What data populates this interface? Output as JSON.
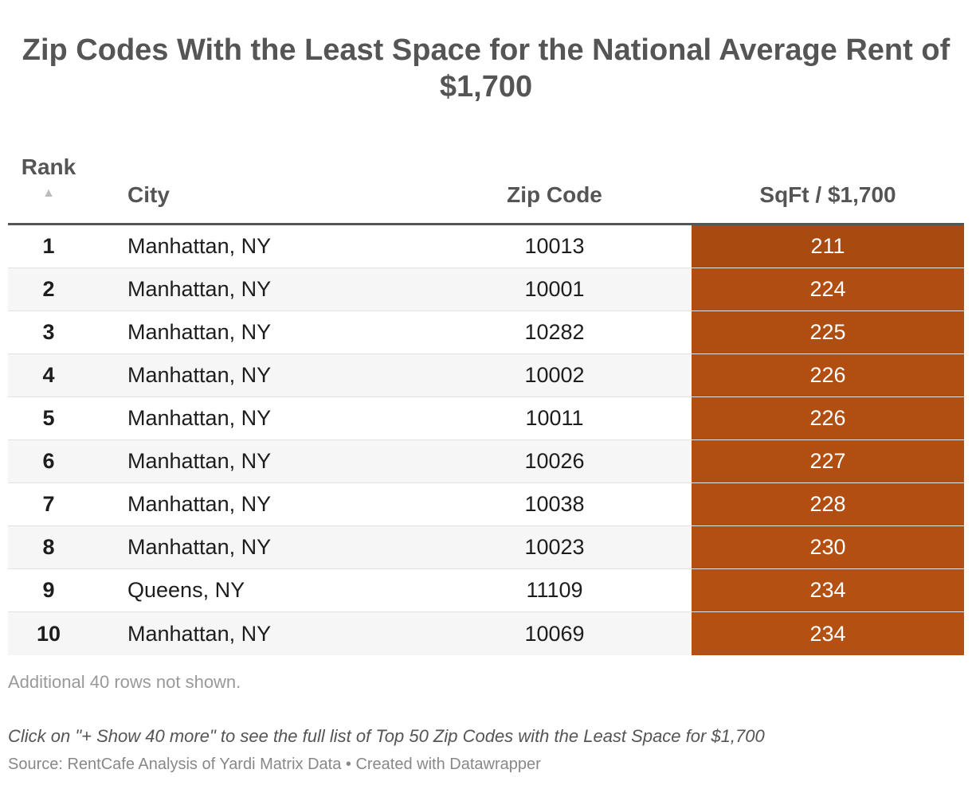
{
  "title": "Zip Codes With the Least Space for the National Average Rent of $1,700",
  "table": {
    "headers": {
      "rank": "Rank",
      "rank_sort_icon": "sort-ascending-icon",
      "rank_sort_glyph": "▲",
      "city": "City",
      "zip": "Zip Code",
      "sqft": "SqFt / $1,700"
    },
    "heat_colors": {
      "min": "#a94a10",
      "max": "#b55013"
    }
  },
  "chart_data": {
    "type": "table",
    "title": "Zip Codes With the Least Space for the National Average Rent of $1,700",
    "columns": [
      "Rank",
      "City",
      "Zip Code",
      "SqFt / $1,700"
    ],
    "rows": [
      {
        "rank": "1",
        "city": "Manhattan, NY",
        "zip": "10013",
        "sqft": 211
      },
      {
        "rank": "2",
        "city": "Manhattan, NY",
        "zip": "10001",
        "sqft": 224
      },
      {
        "rank": "3",
        "city": "Manhattan, NY",
        "zip": "10282",
        "sqft": 225
      },
      {
        "rank": "4",
        "city": "Manhattan, NY",
        "zip": "10002",
        "sqft": 226
      },
      {
        "rank": "5",
        "city": "Manhattan, NY",
        "zip": "10011",
        "sqft": 226
      },
      {
        "rank": "6",
        "city": "Manhattan, NY",
        "zip": "10026",
        "sqft": 227
      },
      {
        "rank": "7",
        "city": "Manhattan, NY",
        "zip": "10038",
        "sqft": 228
      },
      {
        "rank": "8",
        "city": "Manhattan, NY",
        "zip": "10023",
        "sqft": 230
      },
      {
        "rank": "9",
        "city": "Queens, NY",
        "zip": "11109",
        "sqft": 234
      },
      {
        "rank": "10",
        "city": "Manhattan, NY",
        "zip": "10069",
        "sqft": 234
      }
    ]
  },
  "notes": {
    "more_rows": "Additional 40 rows not shown.",
    "instruction": "Click on \"+ Show 40 more\" to see the full list of Top 50 Zip Codes with the Least Space for $1,700",
    "source": "Source: RentCafe Analysis of Yardi Matrix Data • Created with Datawrapper"
  }
}
